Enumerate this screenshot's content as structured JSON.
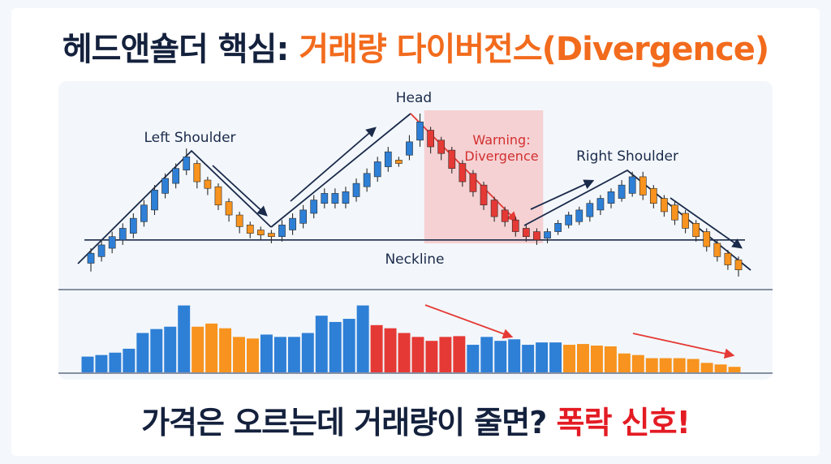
{
  "header": {
    "title_main": "헤드앤숄더 핵심: ",
    "title_accent": "거래량 다이버전스(Divergence)"
  },
  "footer": {
    "question": "가격은 오르는데 거래량이 줄면? ",
    "answer": "폭락 신호!"
  },
  "colors": {
    "up": "#2e7fd6",
    "down": "#f7931e",
    "warning": "#e53935",
    "warning_zone": "#f6b3b3",
    "trend_arrow": "#1a2a4a",
    "neckline": "#1a2a4a"
  },
  "chart_data": [
    {
      "type": "candlestick",
      "price_axis_range": [
        0,
        100
      ],
      "annotations": {
        "left_shoulder": "Left Shoulder",
        "head": "Head",
        "right_shoulder": "Right Shoulder",
        "neckline": "Neckline",
        "warning": [
          "Warning:",
          "Divergence"
        ]
      },
      "neckline_level": 24,
      "candles": [
        {
          "o": 10,
          "c": 16,
          "h": 19,
          "l": 5,
          "dir": "up"
        },
        {
          "o": 14,
          "c": 21,
          "h": 24,
          "l": 11,
          "dir": "up"
        },
        {
          "o": 19,
          "c": 26,
          "h": 29,
          "l": 16,
          "dir": "up"
        },
        {
          "o": 24,
          "c": 31,
          "h": 34,
          "l": 21,
          "dir": "up"
        },
        {
          "o": 28,
          "c": 37,
          "h": 40,
          "l": 25,
          "dir": "up"
        },
        {
          "o": 35,
          "c": 45,
          "h": 48,
          "l": 32,
          "dir": "up"
        },
        {
          "o": 42,
          "c": 54,
          "h": 57,
          "l": 39,
          "dir": "up"
        },
        {
          "o": 52,
          "c": 61,
          "h": 64,
          "l": 49,
          "dir": "up"
        },
        {
          "o": 58,
          "c": 67,
          "h": 70,
          "l": 55,
          "dir": "up"
        },
        {
          "o": 66,
          "c": 74,
          "h": 79,
          "l": 63,
          "dir": "up"
        },
        {
          "o": 70,
          "c": 59,
          "h": 72,
          "l": 55,
          "dir": "down"
        },
        {
          "o": 60,
          "c": 55,
          "h": 62,
          "l": 51,
          "dir": "down"
        },
        {
          "o": 56,
          "c": 45,
          "h": 58,
          "l": 42,
          "dir": "down"
        },
        {
          "o": 47,
          "c": 39,
          "h": 49,
          "l": 35,
          "dir": "down"
        },
        {
          "o": 39,
          "c": 32,
          "h": 41,
          "l": 28,
          "dir": "down"
        },
        {
          "o": 33,
          "c": 28,
          "h": 35,
          "l": 25,
          "dir": "down"
        },
        {
          "o": 30,
          "c": 27,
          "h": 32,
          "l": 24,
          "dir": "down"
        },
        {
          "o": 28,
          "c": 26,
          "h": 30,
          "l": 22,
          "dir": "down"
        },
        {
          "o": 26,
          "c": 33,
          "h": 36,
          "l": 23,
          "dir": "up"
        },
        {
          "o": 30,
          "c": 37,
          "h": 40,
          "l": 27,
          "dir": "up"
        },
        {
          "o": 34,
          "c": 42,
          "h": 45,
          "l": 31,
          "dir": "up"
        },
        {
          "o": 40,
          "c": 48,
          "h": 51,
          "l": 37,
          "dir": "up"
        },
        {
          "o": 46,
          "c": 52,
          "h": 55,
          "l": 43,
          "dir": "up"
        },
        {
          "o": 46,
          "c": 52,
          "h": 55,
          "l": 43,
          "dir": "up"
        },
        {
          "o": 46,
          "c": 53,
          "h": 56,
          "l": 43,
          "dir": "up"
        },
        {
          "o": 50,
          "c": 58,
          "h": 61,
          "l": 47,
          "dir": "up"
        },
        {
          "o": 56,
          "c": 64,
          "h": 67,
          "l": 53,
          "dir": "up"
        },
        {
          "o": 62,
          "c": 71,
          "h": 74,
          "l": 59,
          "dir": "up"
        },
        {
          "o": 68,
          "c": 77,
          "h": 80,
          "l": 65,
          "dir": "up"
        },
        {
          "o": 72,
          "c": 70,
          "h": 74,
          "l": 68,
          "dir": "down"
        },
        {
          "o": 75,
          "c": 83,
          "h": 87,
          "l": 72,
          "dir": "up"
        },
        {
          "o": 84,
          "c": 95,
          "h": 100,
          "l": 80,
          "dir": "up"
        },
        {
          "o": 90,
          "c": 80,
          "h": 92,
          "l": 76,
          "dir": "warn"
        },
        {
          "o": 84,
          "c": 76,
          "h": 86,
          "l": 72,
          "dir": "warn"
        },
        {
          "o": 78,
          "c": 67,
          "h": 80,
          "l": 64,
          "dir": "warn"
        },
        {
          "o": 70,
          "c": 59,
          "h": 72,
          "l": 56,
          "dir": "warn"
        },
        {
          "o": 64,
          "c": 53,
          "h": 66,
          "l": 50,
          "dir": "warn"
        },
        {
          "o": 57,
          "c": 45,
          "h": 59,
          "l": 42,
          "dir": "warn"
        },
        {
          "o": 48,
          "c": 38,
          "h": 50,
          "l": 35,
          "dir": "warn"
        },
        {
          "o": 42,
          "c": 35,
          "h": 44,
          "l": 32,
          "dir": "warn"
        },
        {
          "o": 36,
          "c": 29,
          "h": 38,
          "l": 26,
          "dir": "warn"
        },
        {
          "o": 31,
          "c": 26,
          "h": 33,
          "l": 23,
          "dir": "warn"
        },
        {
          "o": 29,
          "c": 24,
          "h": 31,
          "l": 21,
          "dir": "warn"
        },
        {
          "o": 25,
          "c": 29,
          "h": 31,
          "l": 22,
          "dir": "up"
        },
        {
          "o": 29,
          "c": 34,
          "h": 36,
          "l": 27,
          "dir": "up"
        },
        {
          "o": 33,
          "c": 39,
          "h": 41,
          "l": 31,
          "dir": "up"
        },
        {
          "o": 35,
          "c": 42,
          "h": 44,
          "l": 33,
          "dir": "up"
        },
        {
          "o": 38,
          "c": 46,
          "h": 48,
          "l": 35,
          "dir": "up"
        },
        {
          "o": 42,
          "c": 49,
          "h": 51,
          "l": 39,
          "dir": "up"
        },
        {
          "o": 46,
          "c": 53,
          "h": 55,
          "l": 43,
          "dir": "up"
        },
        {
          "o": 49,
          "c": 57,
          "h": 60,
          "l": 47,
          "dir": "up"
        },
        {
          "o": 52,
          "c": 62,
          "h": 65,
          "l": 50,
          "dir": "up"
        },
        {
          "o": 62,
          "c": 51,
          "h": 65,
          "l": 48,
          "dir": "down"
        },
        {
          "o": 55,
          "c": 46,
          "h": 57,
          "l": 43,
          "dir": "down"
        },
        {
          "o": 49,
          "c": 41,
          "h": 51,
          "l": 38,
          "dir": "down"
        },
        {
          "o": 45,
          "c": 36,
          "h": 47,
          "l": 33,
          "dir": "down"
        },
        {
          "o": 40,
          "c": 31,
          "h": 42,
          "l": 28,
          "dir": "down"
        },
        {
          "o": 34,
          "c": 26,
          "h": 36,
          "l": 23,
          "dir": "down"
        },
        {
          "o": 29,
          "c": 20,
          "h": 31,
          "l": 17,
          "dir": "down"
        },
        {
          "o": 22,
          "c": 14,
          "h": 24,
          "l": 11,
          "dir": "down"
        },
        {
          "o": 16,
          "c": 9,
          "h": 18,
          "l": 6,
          "dir": "down"
        },
        {
          "o": 12,
          "c": 6,
          "h": 14,
          "l": 2,
          "dir": "down"
        }
      ]
    },
    {
      "type": "bar",
      "series": [
        {
          "values": [
            20,
            22,
            25,
            30,
            50,
            55,
            58,
            85,
            58,
            62,
            56,
            45,
            43,
            48,
            45,
            45,
            50,
            72,
            64,
            68,
            85,
            60,
            56,
            50,
            45,
            40,
            45,
            46,
            35,
            45,
            40,
            42,
            35,
            38,
            38,
            35,
            36,
            34,
            33,
            24,
            22,
            18,
            18,
            18,
            17,
            12,
            10,
            7
          ],
          "colors": [
            "up",
            "up",
            "up",
            "up",
            "up",
            "up",
            "up",
            "up",
            "down",
            "down",
            "down",
            "down",
            "down",
            "up",
            "up",
            "up",
            "up",
            "up",
            "up",
            "up",
            "up",
            "warn",
            "warn",
            "warn",
            "warn",
            "warn",
            "warn",
            "warn",
            "up",
            "up",
            "up",
            "up",
            "up",
            "up",
            "up",
            "down",
            "down",
            "down",
            "down",
            "down",
            "down",
            "down",
            "down",
            "down",
            "down",
            "down",
            "down",
            "down"
          ]
        }
      ],
      "ylim": [
        0,
        100
      ]
    }
  ]
}
